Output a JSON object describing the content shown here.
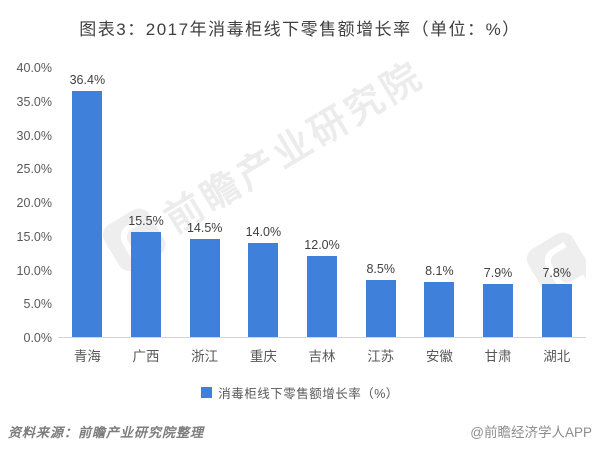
{
  "title": "图表3：2017年消毒柜线下零售额增长率（单位：%）",
  "chart_data": {
    "type": "bar",
    "title": "图表3：2017年消毒柜线下零售额增长率（单位：%）",
    "categories": [
      "青海",
      "广西",
      "浙江",
      "重庆",
      "吉林",
      "江苏",
      "安徽",
      "甘肃",
      "湖北"
    ],
    "values": [
      36.4,
      15.5,
      14.5,
      14.0,
      12.0,
      8.5,
      8.1,
      7.9,
      7.8
    ],
    "value_labels": [
      "36.4%",
      "15.5%",
      "14.5%",
      "14.0%",
      "12.0%",
      "8.5%",
      "8.1%",
      "7.9%",
      "7.8%"
    ],
    "xlabel": "",
    "ylabel": "",
    "ylim": [
      0,
      40
    ],
    "y_ticks": [
      "40.0%",
      "35.0%",
      "30.0%",
      "25.0%",
      "20.0%",
      "15.0%",
      "10.0%",
      "5.0%",
      "0.0%"
    ],
    "grid": false,
    "legend": [
      "消毒柜线下零售额增长率（%）"
    ],
    "legend_position": "bottom",
    "bar_color": "#3F80DB"
  },
  "legend": {
    "marker_color": "#3F80DB",
    "label": "消毒柜线下零售额增长率（%）"
  },
  "footer": {
    "source": "资料来源：前瞻产业研究院整理",
    "credit": "@前瞻经济学人APP"
  },
  "watermark": {
    "text": "前瞻产业研究院"
  }
}
